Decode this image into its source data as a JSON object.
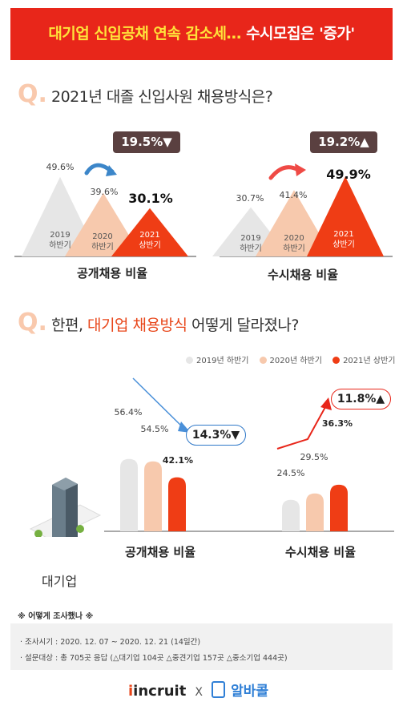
{
  "banner": {
    "title_part1": "대기업 신입공채 연속 감소세… ",
    "title_part2": "수시모집은 '증가'"
  },
  "q1": {
    "mark": "Q.",
    "text": "2021년 대졸 신입사원 채용방식은?"
  },
  "q2": {
    "mark": "Q.",
    "text_pre": "한편, ",
    "text_highlight": "대기업 채용방식",
    "text_post": " 어떻게 달라졌나?"
  },
  "colors": {
    "y2019": "#e6e6e6",
    "y2020": "#f7c9ad",
    "y2021": "#ef3d15",
    "accent_red": "#e8261a",
    "accent_blue": "#2f78c8",
    "badge_bg": "#5a4040"
  },
  "chart_data": [
    {
      "type": "area",
      "title": "공개채용 비율",
      "categories": [
        "2019\n하반기",
        "2020\n하반기",
        "2021\n상반기"
      ],
      "values": [
        49.6,
        39.6,
        30.1
      ],
      "value_labels": [
        "49.6%",
        "39.6%",
        "30.1%"
      ],
      "change_badge": "19.5%▼",
      "change_direction": "down"
    },
    {
      "type": "area",
      "title": "수시채용 비율",
      "categories": [
        "2019\n하반기",
        "2020\n하반기",
        "2021\n상반기"
      ],
      "values": [
        30.7,
        41.4,
        49.9
      ],
      "value_labels": [
        "30.7%",
        "41.4%",
        "49.9%"
      ],
      "change_badge": "19.2%▲",
      "change_direction": "up"
    },
    {
      "type": "bar",
      "legend": [
        "2019년 하반기",
        "2020년 하반기",
        "2021년 상반기"
      ],
      "legend_position": "top-right",
      "categories": [
        "공개채용 비율",
        "수시채용 비율"
      ],
      "series": [
        {
          "name": "2019년 하반기",
          "values": [
            56.4,
            24.5
          ]
        },
        {
          "name": "2020년 하반기",
          "values": [
            54.5,
            29.5
          ]
        },
        {
          "name": "2021년 상반기",
          "values": [
            42.1,
            36.3
          ]
        }
      ],
      "value_labels": [
        [
          "56.4%",
          "54.5%",
          "42.1%"
        ],
        [
          "24.5%",
          "29.5%",
          "36.3%"
        ]
      ],
      "callouts": [
        "14.3%▼",
        "11.8%▲"
      ],
      "ylim": [
        0,
        70
      ]
    }
  ],
  "building_label": "대기업",
  "survey": {
    "heading": "※ 어떻게 조사했나 ※",
    "period": "· 조사시기 : 2020. 12. 07 ~ 2020. 12. 21 (14일간)",
    "target": "· 설문대상 : 총 705곳 응답 (△대기업 104곳 △중견기업 157곳 △중소기업 444곳)"
  },
  "footer": {
    "brand1": "incruit",
    "separator": "X",
    "brand2": "알바콜"
  }
}
